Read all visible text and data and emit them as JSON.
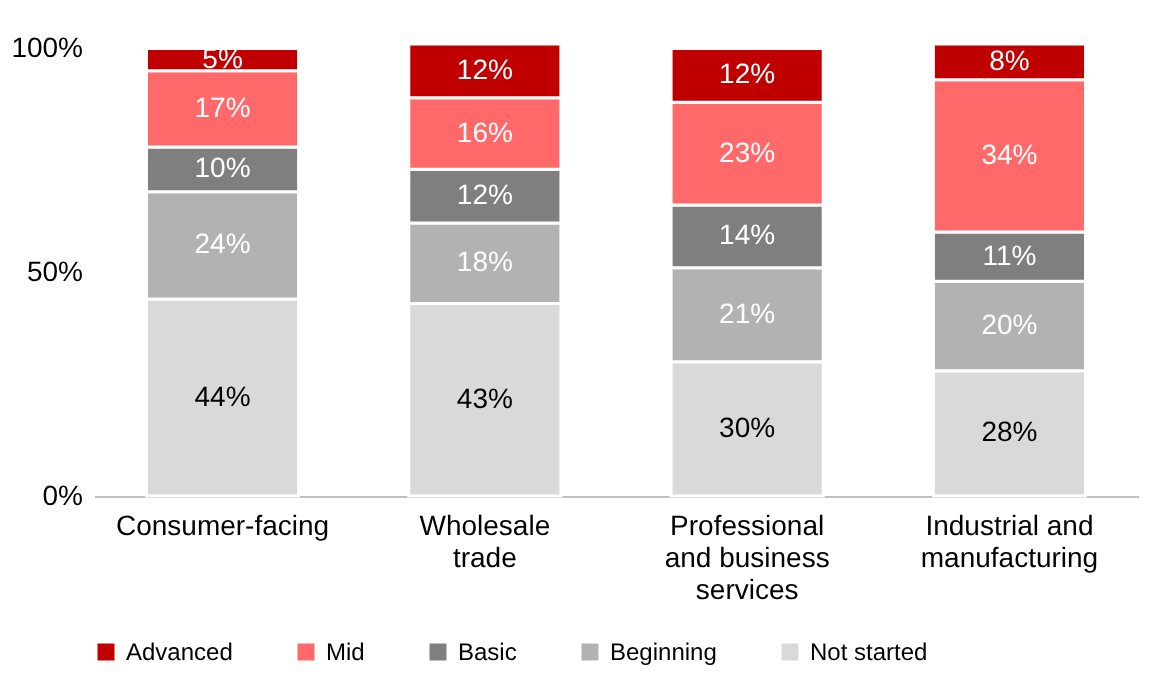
{
  "chart_data": {
    "type": "bar",
    "stacked": true,
    "categories": [
      "Consumer-facing",
      "Wholesale trade",
      "Professional and business services",
      "Industrial and manufacturing"
    ],
    "series": [
      {
        "name": "Not started",
        "color": "#d9d9d9",
        "values": [
          44,
          43,
          30,
          28
        ],
        "value_labels": [
          "44%",
          "43%",
          "30%",
          "28%"
        ]
      },
      {
        "name": "Beginning",
        "color": "#b2b2b2",
        "values": [
          24,
          18,
          21,
          20
        ],
        "value_labels": [
          "24%",
          "18%",
          "21%",
          "20%"
        ]
      },
      {
        "name": "Basic",
        "color": "#7f7f7f",
        "values": [
          10,
          12,
          14,
          11
        ],
        "value_labels": [
          "10%",
          "12%",
          "14%",
          "11%"
        ]
      },
      {
        "name": "Mid",
        "color": "#ff6969",
        "values": [
          17,
          16,
          23,
          34
        ],
        "value_labels": [
          "17%",
          "16%",
          "23%",
          "34%"
        ]
      },
      {
        "name": "Advanced",
        "color": "#c00000",
        "values": [
          5,
          12,
          12,
          8
        ],
        "value_labels": [
          "5%",
          "12%",
          "12%",
          "8%"
        ]
      }
    ],
    "ylim": [
      0,
      101
    ],
    "yticks": [
      {
        "value": 0,
        "label": "0%"
      },
      {
        "value": 50,
        "label": "50%"
      },
      {
        "value": 100,
        "label": "100%"
      }
    ],
    "grid": false,
    "legend": "bottom"
  }
}
